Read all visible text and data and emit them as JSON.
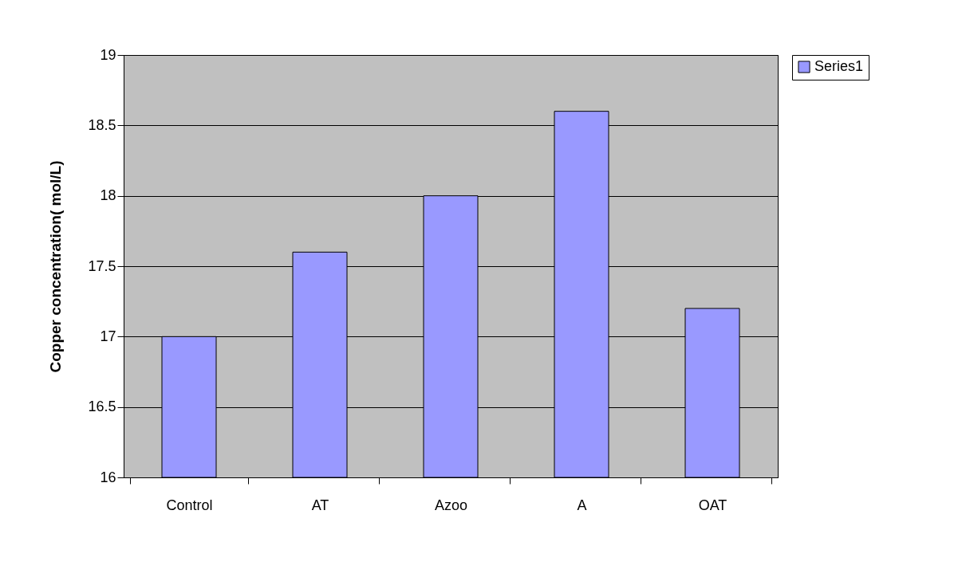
{
  "chart_data": {
    "type": "bar",
    "ylabel": "Copper concentration(     mol/L)",
    "categories": [
      "Control",
      "AT",
      "Azoo",
      "A",
      "OAT"
    ],
    "series": [
      {
        "name": "Series1",
        "color": "#9999ff",
        "values": [
          17.0,
          17.6,
          18.0,
          18.6,
          17.2
        ]
      }
    ],
    "ylim": [
      16,
      19
    ],
    "yticks": [
      16,
      16.5,
      17,
      17.5,
      18,
      18.5,
      19
    ],
    "grid": "y",
    "legend": "right"
  }
}
